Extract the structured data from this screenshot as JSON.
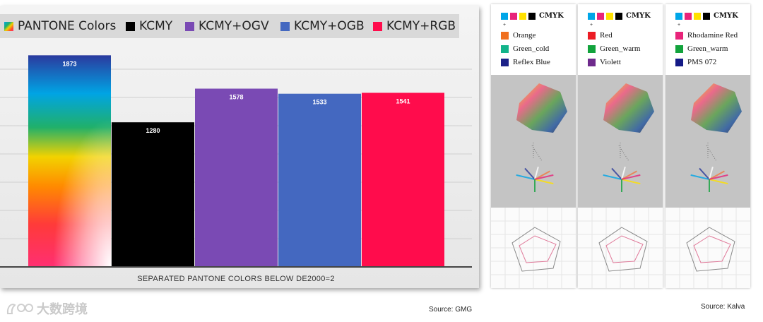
{
  "chart_data": {
    "type": "bar",
    "title": "PANTONE Colors",
    "categories": [
      "PANTONE Colors",
      "KCMY",
      "KCMY+OGV",
      "KCMY+OGB",
      "KCMY+RGB"
    ],
    "values": [
      1873,
      1280,
      1578,
      1533,
      1541
    ],
    "colors": [
      "#ff6a00",
      "#000000",
      "#7a4ab4",
      "#4468c0",
      "#ff0c4c"
    ],
    "xlabel": "SEPARATED PANTONE COLORS BELOW DE2000=2",
    "ylabel": "",
    "ylim": [
      0,
      2000
    ],
    "grid": true,
    "legend": [
      {
        "label": "PANTONE Colors",
        "color": "rainbow"
      },
      {
        "label": "KCMY",
        "color": "#000000"
      },
      {
        "label": "KCMY+OGV",
        "color": "#7a4ab4"
      },
      {
        "label": "KCMY+OGB",
        "color": "#4468c0"
      },
      {
        "label": "KCMY+RGB",
        "color": "#ff0c4c"
      }
    ]
  },
  "sources": {
    "gmg": "Source: GMG",
    "kalva": "Source: Kalva"
  },
  "watermark": "大数跨境",
  "panels": [
    {
      "cmyk_label": "CMYK",
      "plus": "+",
      "items": [
        {
          "name": "Orange",
          "color": "#f07020"
        },
        {
          "name": "Green_cold",
          "color": "#13b48a"
        },
        {
          "name": "Reflex Blue",
          "color": "#1c2288"
        }
      ]
    },
    {
      "cmyk_label": "CMYK",
      "plus": "+",
      "items": [
        {
          "name": "Red",
          "color": "#ec1c24"
        },
        {
          "name": "Green_warm",
          "color": "#12a33c"
        },
        {
          "name": "Violett",
          "color": "#6e2a8c"
        }
      ]
    },
    {
      "cmyk_label": "CMYK",
      "plus": "+",
      "items": [
        {
          "name": "Rhodamine Red",
          "color": "#e8247a"
        },
        {
          "name": "Green_warm",
          "color": "#12a33c"
        },
        {
          "name": "PMS 072",
          "color": "#141a86"
        }
      ]
    }
  ],
  "cmyk_colors": [
    "#00a6e8",
    "#e8247a",
    "#ffe100",
    "#000000"
  ]
}
